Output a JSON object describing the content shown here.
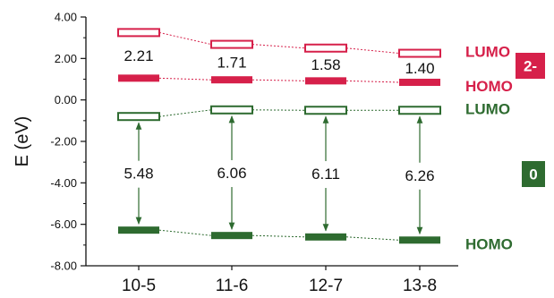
{
  "chart_data": {
    "type": "energy-level-diagram",
    "ylabel": "E  (eV)",
    "ylim": [
      -8.0,
      4.0
    ],
    "yticks": [
      "4.00",
      "2.00",
      "0.00",
      "-2.00",
      "-4.00",
      "-6.00",
      "-8.00"
    ],
    "yticks_values": [
      4,
      2,
      0,
      -2,
      -4,
      -6,
      -8
    ],
    "categories": [
      "10-5",
      "11-6",
      "12-7",
      "13-8"
    ],
    "series": [
      {
        "name": "2-",
        "color": "#d6204a",
        "lumo": [
          3.25,
          2.68,
          2.5,
          2.25
        ],
        "homo": [
          1.05,
          0.97,
          0.92,
          0.85
        ],
        "gaps": [
          "2.21",
          "1.71",
          "1.58",
          "1.40"
        ],
        "lumo_label": "LUMO",
        "homo_label": "HOMO"
      },
      {
        "name": "0",
        "color": "#2e6b30",
        "lumo": [
          -0.8,
          -0.48,
          -0.5,
          -0.5
        ],
        "homo": [
          -6.28,
          -6.54,
          -6.61,
          -6.76
        ],
        "gaps": [
          "5.48",
          "6.06",
          "6.11",
          "6.26"
        ],
        "lumo_label": "LUMO",
        "homo_label": "HOMO"
      }
    ]
  }
}
